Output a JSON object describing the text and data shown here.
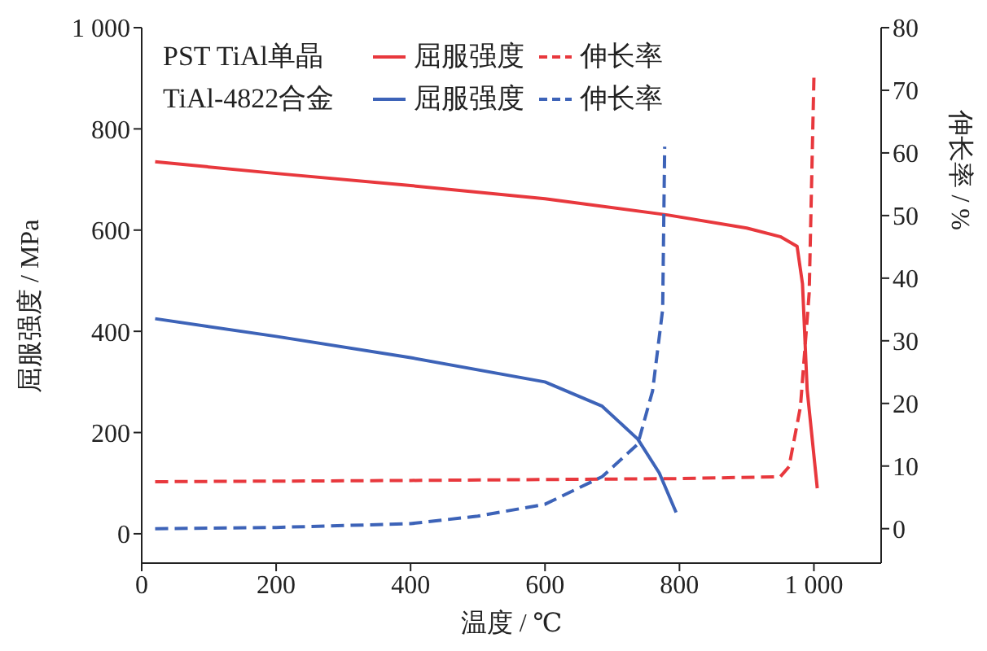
{
  "chart_data": {
    "type": "line",
    "xlabel": "温度 / ℃",
    "ylabel": "屈服强度 / MPa",
    "y2label": "伸长率 / %",
    "annotations": [
      "PST TiAl单晶",
      "TiAl-4822合金"
    ],
    "xlim": [
      0,
      1100
    ],
    "xticks": [
      0,
      200,
      400,
      600,
      800,
      {
        "value": 1000,
        "label": "1 000"
      }
    ],
    "ylim": [
      -58,
      1000
    ],
    "yticks": [
      0,
      200,
      400,
      600,
      800,
      {
        "value": 1000,
        "label": "1 000"
      }
    ],
    "y2lim": [
      -5.5,
      80
    ],
    "y2ticks": [
      0,
      10,
      20,
      30,
      40,
      50,
      60,
      70,
      80
    ],
    "legend": "top left",
    "series": [
      {
        "name": "屈服强度",
        "color": "#e8383d",
        "line_style": "solid",
        "x": [
          20,
          200,
          400,
          600,
          782,
          900,
          950,
          975,
          983,
          990,
          1005
        ],
        "values": [
          735,
          712,
          688,
          662,
          630,
          604,
          587,
          568,
          494,
          284,
          90
        ]
      },
      {
        "name": "伸长率",
        "color": "#e8383d",
        "line_style": "dashed",
        "axis": "y2",
        "x": [
          20,
          400,
          800,
          950,
          963,
          980,
          993,
          1000
        ],
        "values": [
          7.5,
          7.7,
          8,
          8.3,
          9.9,
          19.5,
          37.7,
          72
        ]
      },
      {
        "name": "屈服强度",
        "color": "#3d63b8",
        "line_style": "solid",
        "x": [
          20,
          200,
          400,
          600,
          685,
          738,
          770,
          795
        ],
        "values": [
          425,
          390,
          348,
          300,
          252,
          187,
          120,
          42
        ]
      },
      {
        "name": "伸长率",
        "color": "#3d63b8",
        "line_style": "dashed",
        "axis": "y2",
        "x": [
          20,
          200,
          400,
          500,
          600,
          685,
          738,
          760,
          775,
          778
        ],
        "values": [
          0,
          0.2,
          0.8,
          2,
          3.9,
          8.3,
          13.5,
          22,
          35,
          61
        ]
      }
    ]
  }
}
